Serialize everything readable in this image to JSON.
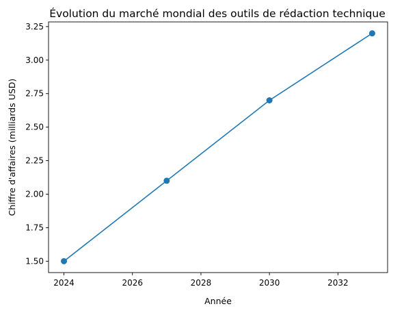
{
  "chart_data": {
    "type": "line",
    "title": "Évolution du marché mondial des outils de rédaction technique",
    "xlabel": "Année",
    "ylabel": "Chiffre d'affaires (milliards USD)",
    "x": [
      2024,
      2027,
      2030,
      2033
    ],
    "series": [
      {
        "values": [
          1.5,
          2.1,
          2.7,
          3.2
        ],
        "color": "#1f77b4",
        "marker": "circle"
      }
    ],
    "xlim": [
      2023.55,
      2033.45
    ],
    "ylim": [
      1.415,
      3.285
    ],
    "xticks": [
      2024,
      2026,
      2028,
      2030,
      2032
    ],
    "yticks": [
      1.5,
      1.75,
      2.0,
      2.25,
      2.5,
      2.75,
      3.0,
      3.25
    ],
    "xtick_labels": [
      "2024",
      "2026",
      "2028",
      "2030",
      "2032"
    ],
    "ytick_labels": [
      "1.50",
      "1.75",
      "2.00",
      "2.25",
      "2.50",
      "2.75",
      "3.00",
      "3.25"
    ],
    "grid": false,
    "legend": "none"
  }
}
